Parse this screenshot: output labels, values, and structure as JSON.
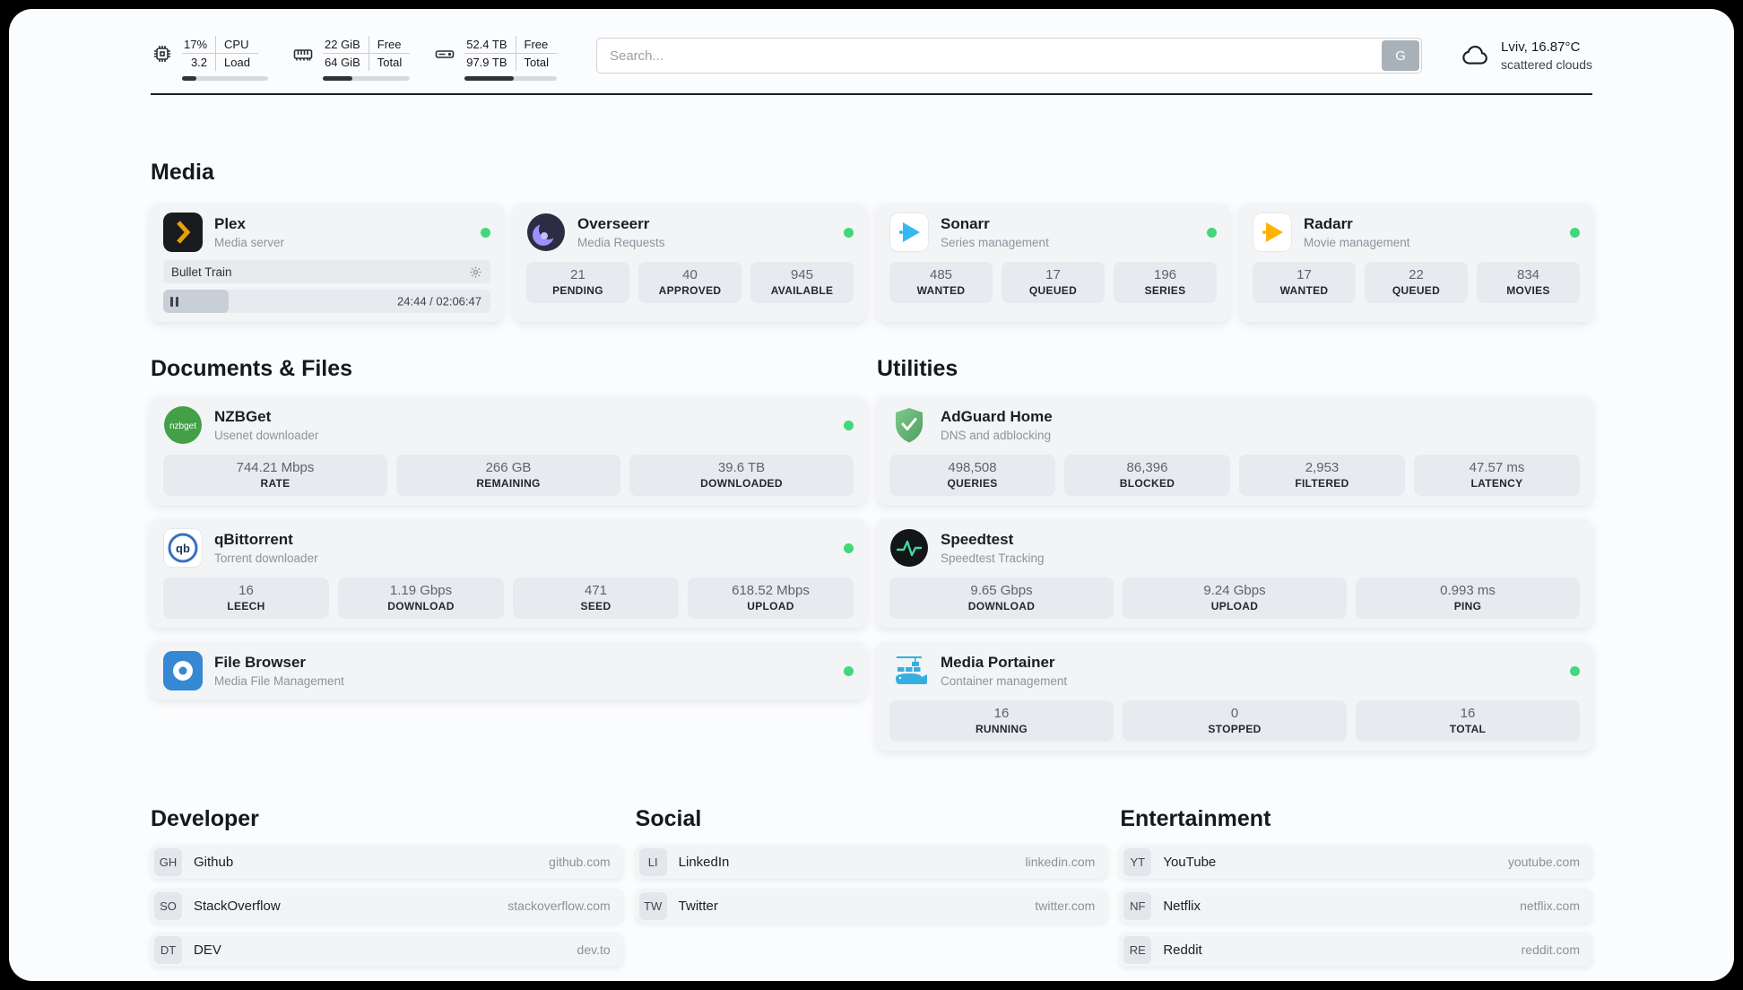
{
  "topbar": {
    "metrics": [
      {
        "name": "cpu",
        "top_value": "17%",
        "bottom_value": "3.2",
        "top_label": "CPU",
        "bottom_label": "Load",
        "progress": 17
      },
      {
        "name": "memory",
        "top_value": "22 GiB",
        "bottom_value": "64 GiB",
        "top_label": "Free",
        "bottom_label": "Total",
        "progress": 34
      },
      {
        "name": "disk",
        "top_value": "52.4 TB",
        "bottom_value": "97.9 TB",
        "top_label": "Free",
        "bottom_label": "Total",
        "progress": 53
      }
    ],
    "search": {
      "placeholder": "Search...",
      "button_label": "G"
    },
    "weather": {
      "location": "Lviv, 16.87°C",
      "condition": "scattered clouds"
    }
  },
  "sections": {
    "media": {
      "title": "Media",
      "plex": {
        "name": "Plex",
        "description": "Media server",
        "now_playing": "Bullet Train",
        "time": "24:44 / 02:06:47",
        "progress": 20
      },
      "overseerr": {
        "name": "Overseerr",
        "description": "Media Requests",
        "stats": [
          {
            "value": "21",
            "label": "PENDING"
          },
          {
            "value": "40",
            "label": "APPROVED"
          },
          {
            "value": "945",
            "label": "AVAILABLE"
          }
        ]
      },
      "sonarr": {
        "name": "Sonarr",
        "description": "Series management",
        "stats": [
          {
            "value": "485",
            "label": "WANTED"
          },
          {
            "value": "17",
            "label": "QUEUED"
          },
          {
            "value": "196",
            "label": "SERIES"
          }
        ]
      },
      "radarr": {
        "name": "Radarr",
        "description": "Movie management",
        "stats": [
          {
            "value": "17",
            "label": "WANTED"
          },
          {
            "value": "22",
            "label": "QUEUED"
          },
          {
            "value": "834",
            "label": "MOVIES"
          }
        ]
      }
    },
    "documents": {
      "title": "Documents & Files",
      "nzbget": {
        "name": "NZBGet",
        "description": "Usenet downloader",
        "stats": [
          {
            "value": "744.21 Mbps",
            "label": "RATE"
          },
          {
            "value": "266 GB",
            "label": "REMAINING"
          },
          {
            "value": "39.6 TB",
            "label": "DOWNLOADED"
          }
        ]
      },
      "qbittorrent": {
        "name": "qBittorrent",
        "description": "Torrent downloader",
        "stats": [
          {
            "value": "16",
            "label": "LEECH"
          },
          {
            "value": "1.19 Gbps",
            "label": "DOWNLOAD"
          },
          {
            "value": "471",
            "label": "SEED"
          },
          {
            "value": "618.52 Mbps",
            "label": "UPLOAD"
          }
        ]
      },
      "filebrowser": {
        "name": "File Browser",
        "description": "Media File Management"
      }
    },
    "utilities": {
      "title": "Utilities",
      "adguard": {
        "name": "AdGuard Home",
        "description": "DNS and adblocking",
        "stats": [
          {
            "value": "498,508",
            "label": "QUERIES"
          },
          {
            "value": "86,396",
            "label": "BLOCKED"
          },
          {
            "value": "2,953",
            "label": "FILTERED"
          },
          {
            "value": "47.57 ms",
            "label": "LATENCY"
          }
        ]
      },
      "speedtest": {
        "name": "Speedtest",
        "description": "Speedtest Tracking",
        "stats": [
          {
            "value": "9.65 Gbps",
            "label": "DOWNLOAD"
          },
          {
            "value": "9.24 Gbps",
            "label": "UPLOAD"
          },
          {
            "value": "0.993 ms",
            "label": "PING"
          }
        ]
      },
      "portainer": {
        "name": "Media Portainer",
        "description": "Container management",
        "stats": [
          {
            "value": "16",
            "label": "RUNNING"
          },
          {
            "value": "0",
            "label": "STOPPED"
          },
          {
            "value": "16",
            "label": "TOTAL"
          }
        ]
      }
    },
    "bookmarks": [
      {
        "title": "Developer",
        "items": [
          {
            "abbr": "GH",
            "name": "Github",
            "url": "github.com"
          },
          {
            "abbr": "SO",
            "name": "StackOverflow",
            "url": "stackoverflow.com"
          },
          {
            "abbr": "DT",
            "name": "DEV",
            "url": "dev.to"
          }
        ]
      },
      {
        "title": "Social",
        "items": [
          {
            "abbr": "LI",
            "name": "LinkedIn",
            "url": "linkedin.com"
          },
          {
            "abbr": "TW",
            "name": "Twitter",
            "url": "twitter.com"
          }
        ]
      },
      {
        "title": "Entertainment",
        "items": [
          {
            "abbr": "YT",
            "name": "YouTube",
            "url": "youtube.com"
          },
          {
            "abbr": "NF",
            "name": "Netflix",
            "url": "netflix.com"
          },
          {
            "abbr": "RE",
            "name": "Reddit",
            "url": "reddit.com"
          }
        ]
      }
    ]
  },
  "colors": {
    "status_online": "#42d77d",
    "plex_accent": "#e5a00d",
    "sonarr_blue": "#35b8f1",
    "radarr_amber": "#ffb300",
    "adguard_green": "#68bc71",
    "speedtest_pulse": "#3dd9a4",
    "portainer_blue": "#38aee0"
  }
}
